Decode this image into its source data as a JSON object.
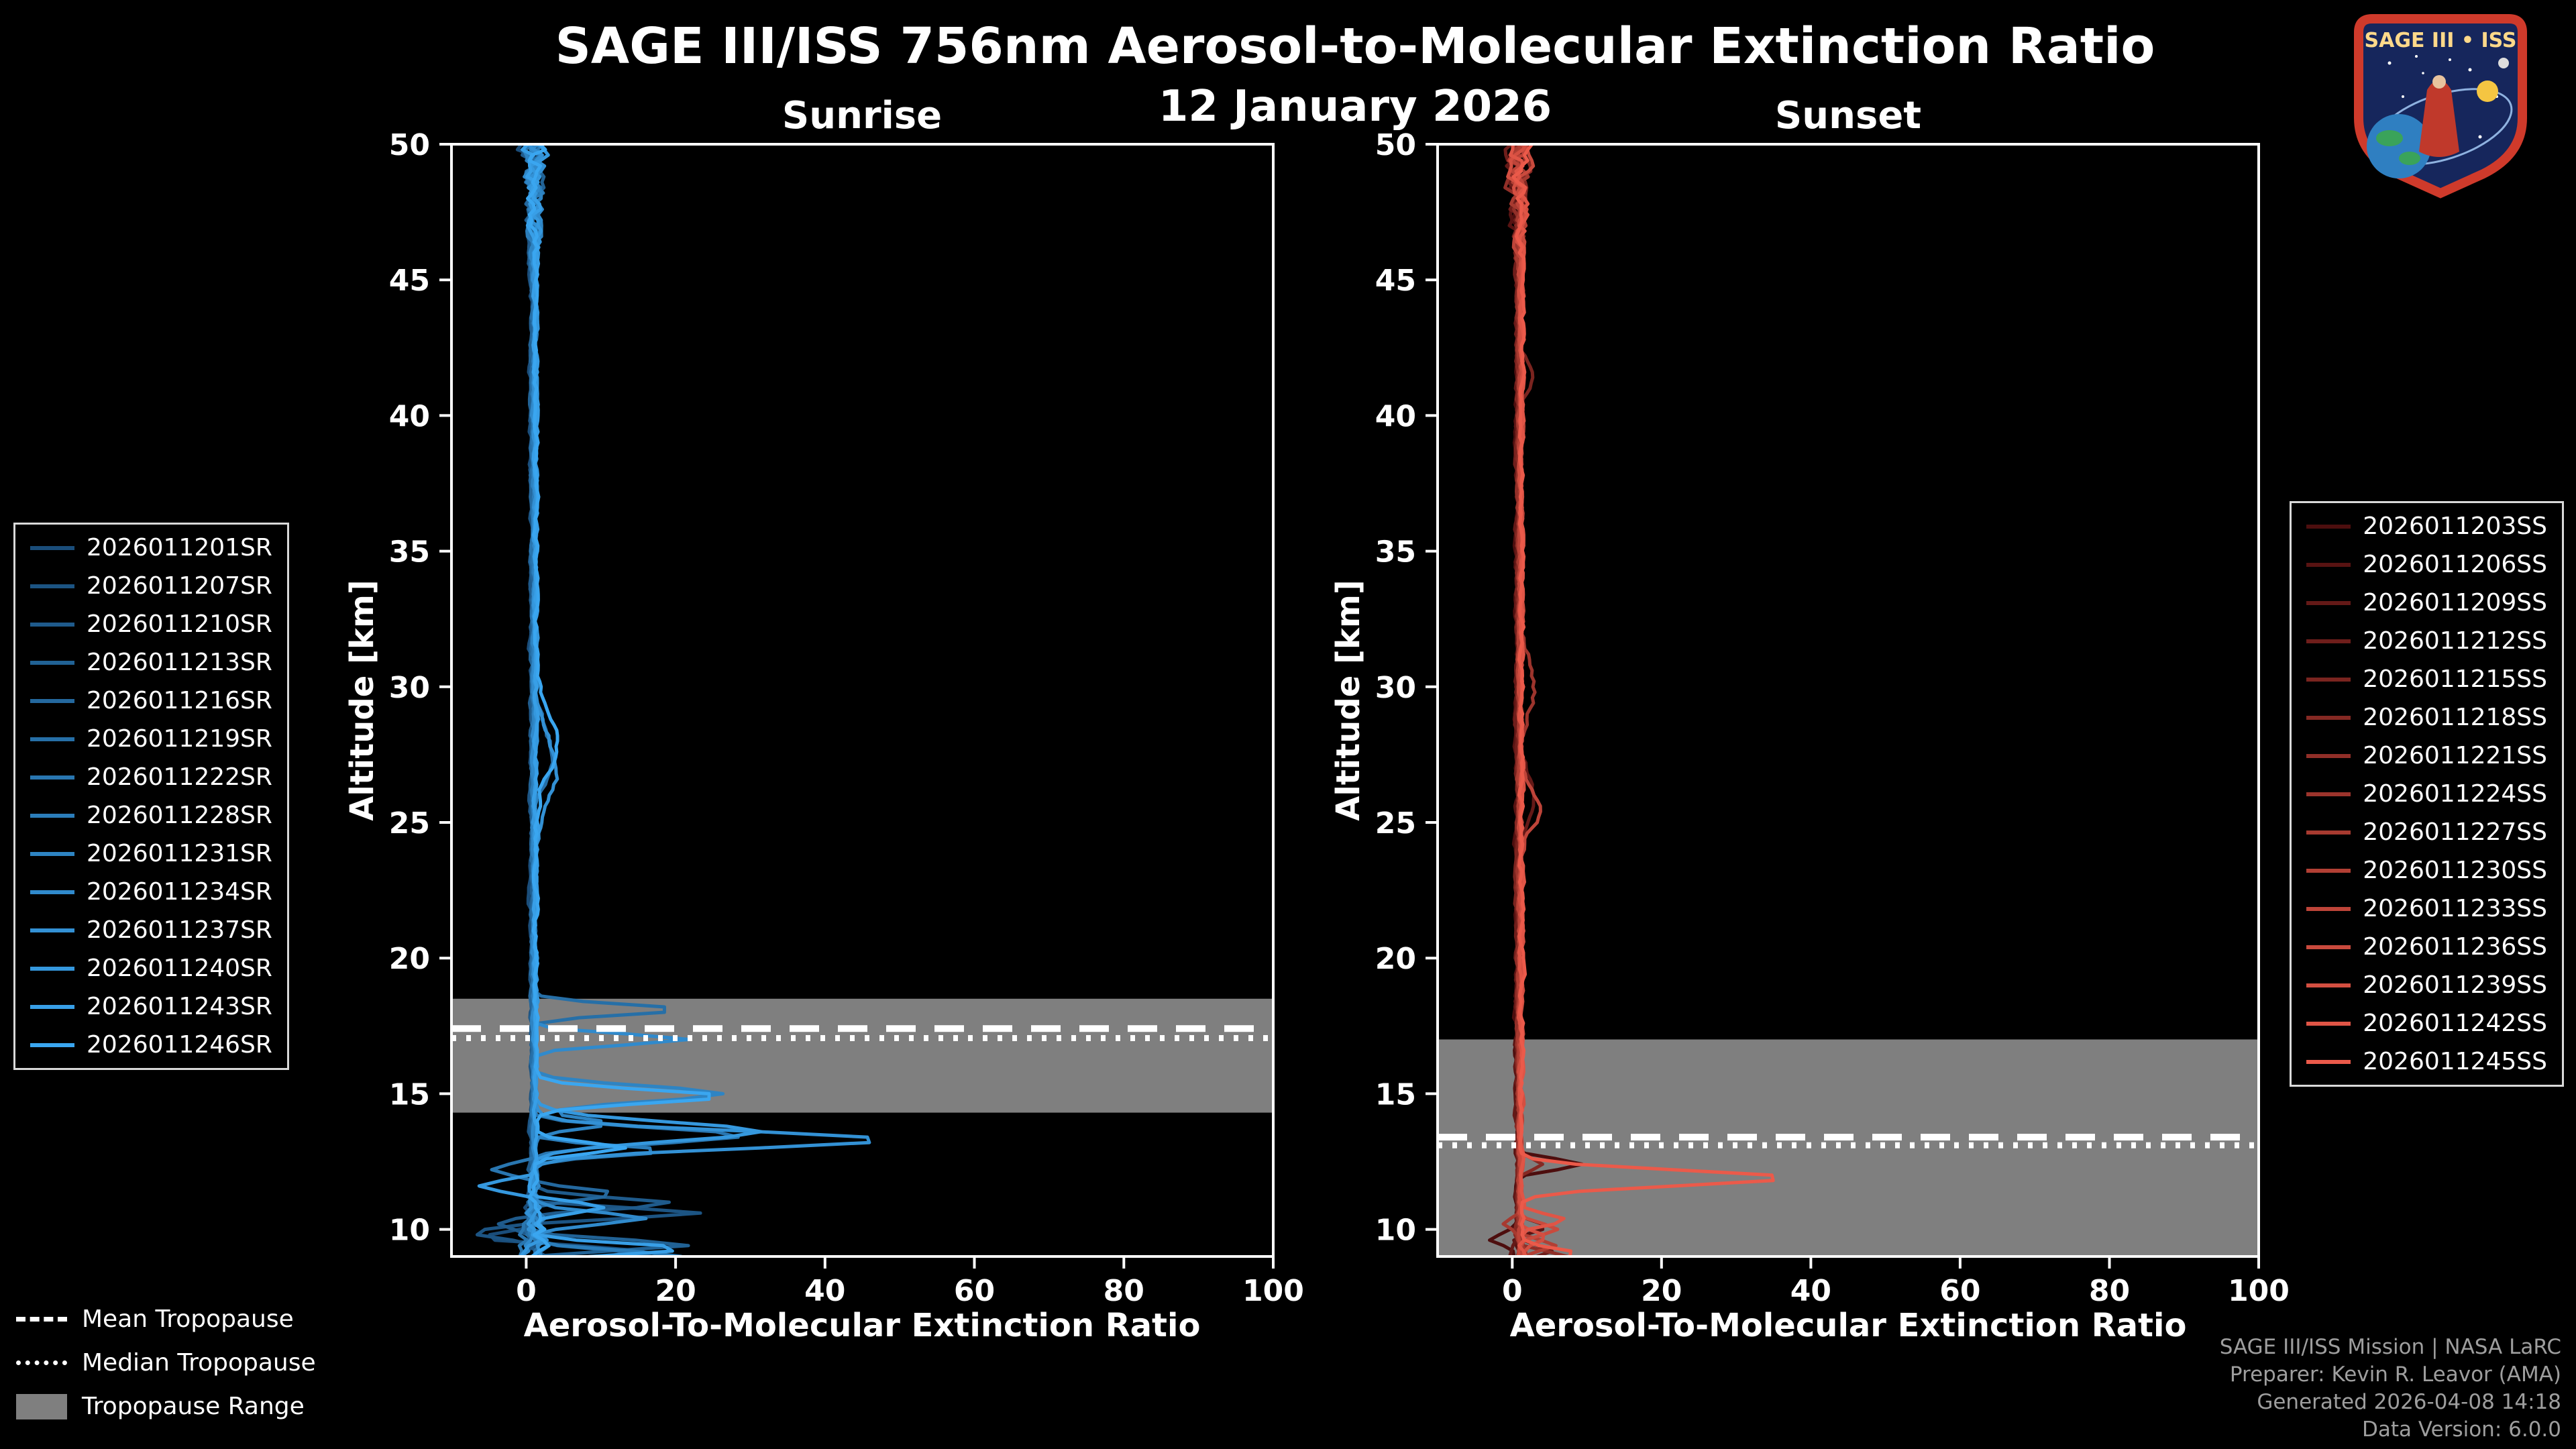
{
  "page": {
    "title": "SAGE III/ISS 756nm Aerosol-to-Molecular Extinction Ratio",
    "subtitle": "12 January 2026",
    "background": "#000000"
  },
  "logo": {
    "text": "SAGE III • ISS"
  },
  "tropopause_legend": {
    "mean_label": "Mean Tropopause",
    "median_label": "Median Tropopause",
    "range_label": "Tropopause Range",
    "range_color": "#7f7f7f"
  },
  "footer": {
    "line1": "SAGE III/ISS Mission | NASA LaRC",
    "line2": "Preparer: Kevin R. Leavor (AMA)",
    "line3": "Generated 2026-04-08 14:18",
    "line4": "Data Version: 6.0.0"
  },
  "chart_data": [
    {
      "type": "line",
      "panel": "sunrise",
      "title": "Sunrise",
      "xlabel": "Aerosol-To-Molecular Extinction Ratio",
      "ylabel": "Altitude [km]",
      "xlim": [
        -10,
        100
      ],
      "ylim": [
        9.0,
        50
      ],
      "xticks": [
        0,
        20,
        40,
        60,
        80,
        100
      ],
      "yticks": [
        10,
        15,
        20,
        25,
        30,
        35,
        40,
        45,
        50
      ],
      "grid": false,
      "baseline_x": 0.7,
      "tropopause": {
        "mean_km": 17.4,
        "median_km": 17.05,
        "range_km": [
          14.3,
          18.5
        ]
      },
      "series": [
        {
          "name": "2026011201SR",
          "color": "#1a4d7a",
          "spikes": [
            [
              9.2,
              14
            ],
            [
              9.7,
              -6
            ]
          ]
        },
        {
          "name": "2026011207SR",
          "color": "#1c5483",
          "spikes": [
            [
              10.6,
              22
            ],
            [
              9.9,
              -7
            ]
          ]
        },
        {
          "name": "2026011210SR",
          "color": "#1f5b8c",
          "spikes": [
            [
              10.95,
              18
            ],
            [
              10.2,
              -5
            ]
          ]
        },
        {
          "name": "2026011213SR",
          "color": "#216295",
          "spikes": [
            [
              9.4,
              21
            ],
            [
              8.95,
              -4
            ]
          ]
        },
        {
          "name": "2026011216SR",
          "color": "#24689e",
          "spikes": [
            [
              11.3,
              12
            ],
            [
              9.05,
              16
            ]
          ]
        },
        {
          "name": "2026011219SR",
          "color": "#266fa7",
          "spikes": [
            [
              18.1,
              20
            ],
            [
              27.5,
              2.5,
              1.5
            ]
          ]
        },
        {
          "name": "2026011222SR",
          "color": "#2976b0",
          "spikes": [
            [
              13.45,
              28,
              0.4
            ],
            [
              12.2,
              -6
            ]
          ]
        },
        {
          "name": "2026011228SR",
          "color": "#2b7dba",
          "spikes": [
            [
              12.9,
              18
            ],
            [
              9.0,
              20
            ]
          ]
        },
        {
          "name": "2026011231SR",
          "color": "#2e84c3",
          "spikes": [
            [
              15.0,
              25,
              0.4
            ],
            [
              13.9,
              10
            ]
          ]
        },
        {
          "name": "2026011234SR",
          "color": "#308acc",
          "spikes": [
            [
              17.0,
              21
            ],
            [
              10.4,
              15
            ]
          ]
        },
        {
          "name": "2026011237SR",
          "color": "#3391d5",
          "spikes": [
            [
              13.3,
              47,
              0.45
            ],
            [
              27.0,
              3,
              1.5
            ]
          ]
        },
        {
          "name": "2026011240SR",
          "color": "#3598de",
          "spikes": [
            [
              13.6,
              30,
              0.5
            ],
            [
              11.6,
              -8
            ]
          ]
        },
        {
          "name": "2026011243SR",
          "color": "#389fe7",
          "spikes": [
            [
              9.3,
              22
            ],
            [
              10.8,
              10
            ]
          ]
        },
        {
          "name": "2026011246SR",
          "color": "#3aa6f0",
          "spikes": [
            [
              14.9,
              25,
              0.35
            ],
            [
              13.0,
              12
            ],
            [
              28.0,
              3,
              1.5
            ]
          ]
        }
      ]
    },
    {
      "type": "line",
      "panel": "sunset",
      "title": "Sunset",
      "xlabel": "Aerosol-To-Molecular Extinction Ratio",
      "ylabel": "Altitude [km]",
      "xlim": [
        -10,
        100
      ],
      "ylim": [
        9.0,
        50
      ],
      "xticks": [
        0,
        20,
        40,
        60,
        80,
        100
      ],
      "yticks": [
        10,
        15,
        20,
        25,
        30,
        35,
        40,
        45,
        50
      ],
      "grid": false,
      "baseline_x": 0.6,
      "tropopause": {
        "mean_km": 13.4,
        "median_km": 13.1,
        "range_km": [
          9.0,
          17.0
        ]
      },
      "series": [
        {
          "name": "2026011203SS",
          "color": "#4d0e0e",
          "spikes": [
            [
              12.4,
              9
            ],
            [
              9.6,
              -3.5
            ]
          ]
        },
        {
          "name": "2026011206SS",
          "color": "#581312",
          "spikes": [
            [
              10.1,
              4
            ]
          ]
        },
        {
          "name": "2026011209SS",
          "color": "#641917",
          "spikes": [
            [
              26.0,
              2.2,
              1.2
            ]
          ]
        },
        {
          "name": "2026011212SS",
          "color": "#6f1e1b",
          "spikes": [
            [
              9.2,
              5
            ]
          ]
        },
        {
          "name": "2026011215SS",
          "color": "#7a241f",
          "spikes": [
            [
              41.5,
              2,
              0.8
            ]
          ]
        },
        {
          "name": "2026011218SS",
          "color": "#852923",
          "spikes": [
            [
              12.4,
              3
            ]
          ]
        },
        {
          "name": "2026011221SS",
          "color": "#912f28",
          "spikes": [
            [
              9.0,
              6
            ]
          ]
        },
        {
          "name": "2026011224SS",
          "color": "#9c342c",
          "spikes": [
            [
              30.0,
              2,
              1.5
            ]
          ]
        },
        {
          "name": "2026011227SS",
          "color": "#a73a30",
          "spikes": [
            [
              10.2,
              -2.5
            ]
          ]
        },
        {
          "name": "2026011230SS",
          "color": "#b23f34",
          "spikes": [
            [
              9.4,
              4
            ]
          ]
        },
        {
          "name": "2026011233SS",
          "color": "#be4439",
          "spikes": [
            [
              25.5,
              2.5,
              1.0
            ]
          ]
        },
        {
          "name": "2026011236SS",
          "color": "#c94a3d",
          "spikes": [
            [
              10.0,
              5
            ]
          ]
        },
        {
          "name": "2026011239SS",
          "color": "#d44f41",
          "spikes": [
            [
              9.7,
              3
            ]
          ]
        },
        {
          "name": "2026011242SS",
          "color": "#e05546",
          "spikes": [
            [
              10.35,
              6
            ]
          ]
        },
        {
          "name": "2026011245SS",
          "color": "#eb5a4a",
          "spikes": [
            [
              11.9,
              36,
              0.4
            ],
            [
              9.1,
              7
            ]
          ]
        }
      ]
    }
  ]
}
